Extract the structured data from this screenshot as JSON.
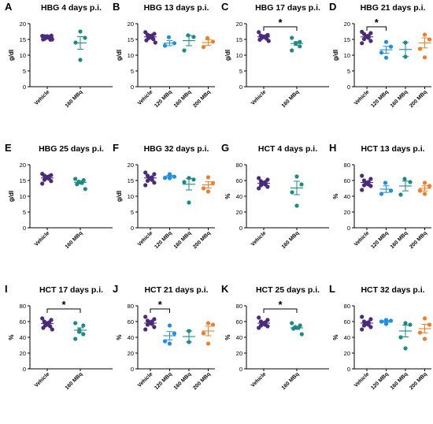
{
  "colors": {
    "Vehicle": "#4a2a7a",
    "120 MBq": "#1f8fe0",
    "160 MBq": "#1a8c84",
    "200 MBq": "#f07d2a"
  },
  "chart_data": [
    {
      "letter": "A",
      "type": "scatter",
      "title": "HBG 4 days p.i.",
      "ylabel": "g/dl",
      "ylim": [
        0,
        20
      ],
      "yticks": [
        0,
        5,
        10,
        15,
        20
      ],
      "categories": [
        "Vehicle",
        "160 MBq"
      ],
      "series": [
        {
          "category": "Vehicle",
          "values": [
            16.1,
            16.2,
            16.0,
            15.8,
            15.9,
            15.7,
            16.0,
            15.6,
            15.5,
            15.2,
            14.9,
            15.0,
            15.0
          ],
          "mean": 15.7,
          "sem": 0.3
        },
        {
          "category": "160 MBq",
          "values": [
            17.5,
            15.5,
            14.0,
            8.5
          ],
          "mean": 13.9,
          "sem": 2.0
        }
      ],
      "sig": []
    },
    {
      "letter": "B",
      "type": "scatter",
      "title": "HBG 13 days p.i.",
      "ylabel": "g/dl",
      "ylim": [
        0,
        20
      ],
      "yticks": [
        0,
        5,
        10,
        15,
        20
      ],
      "categories": [
        "Vehicle",
        "120 MBq",
        "160 MBq",
        "200 MBq"
      ],
      "series": [
        {
          "category": "Vehicle",
          "values": [
            17.3,
            16.8,
            16.5,
            16.3,
            16.2,
            15.9,
            15.6,
            15.4,
            15.1,
            14.7,
            14.0
          ],
          "mean": 15.8,
          "sem": 0.3
        },
        {
          "category": "120 MBq",
          "values": [
            15.7,
            13.8,
            13.0
          ],
          "mean": 13.8,
          "sem": 0.8
        },
        {
          "category": "160 MBq",
          "values": [
            16.3,
            15.8,
            11.5
          ],
          "mean": 14.6,
          "sem": 1.6
        },
        {
          "category": "200 MBq",
          "values": [
            15.4,
            14.3,
            12.6
          ],
          "mean": 14.0,
          "sem": 0.9
        }
      ],
      "sig": []
    },
    {
      "letter": "C",
      "type": "scatter",
      "title": "HBG 17 days p.i.",
      "ylabel": "g/dl",
      "ylim": [
        0,
        20
      ],
      "yticks": [
        0,
        5,
        10,
        15,
        20
      ],
      "categories": [
        "Vehicle",
        "160 MBq"
      ],
      "series": [
        {
          "category": "Vehicle",
          "values": [
            17.3,
            16.4,
            16.2,
            16.0,
            15.9,
            15.8,
            15.7,
            15.5,
            15.2,
            14.9,
            14.5
          ],
          "mean": 15.8,
          "sem": 0.3
        },
        {
          "category": "160 MBq",
          "values": [
            15.5,
            14.2,
            13.8,
            13.7,
            12.8,
            11.5
          ],
          "mean": 13.7,
          "sem": 0.6
        }
      ],
      "sig": [
        {
          "a": 0,
          "b": 1,
          "label": "*"
        }
      ]
    },
    {
      "letter": "D",
      "type": "scatter",
      "title": "HBG 21 days p.i.",
      "ylabel": "g/dl",
      "ylim": [
        0,
        20
      ],
      "yticks": [
        0,
        5,
        10,
        15,
        20
      ],
      "categories": [
        "Vehicle",
        "120 MBq",
        "160 MBq",
        "200 MBq"
      ],
      "series": [
        {
          "category": "Vehicle",
          "values": [
            17.4,
            17.0,
            16.7,
            16.2,
            16.0,
            15.8,
            15.5,
            15.1,
            14.5,
            13.8
          ],
          "mean": 15.8,
          "sem": 0.3
        },
        {
          "category": "120 MBq",
          "values": [
            14.2,
            12.7,
            10.8,
            9.2
          ],
          "mean": 11.7,
          "sem": 1.1
        },
        {
          "category": "160 MBq",
          "values": [
            14.0,
            9.5
          ],
          "mean": 11.8,
          "sem": 2.2
        },
        {
          "category": "200 MBq",
          "values": [
            16.5,
            15.0,
            12.0,
            9.3
          ],
          "mean": 13.9,
          "sem": 1.6
        }
      ],
      "sig": [
        {
          "a": 0,
          "b": 1,
          "label": "*"
        }
      ]
    },
    {
      "letter": "E",
      "type": "scatter",
      "title": "HBG 25 days p.i.",
      "ylabel": "g/dl",
      "ylim": [
        0,
        20
      ],
      "yticks": [
        0,
        5,
        10,
        15,
        20
      ],
      "categories": [
        "Vehicle",
        "160 MBq"
      ],
      "series": [
        {
          "category": "Vehicle",
          "values": [
            17.1,
            16.7,
            16.5,
            16.3,
            16.1,
            15.8,
            15.6,
            15.2,
            14.8,
            14.0
          ],
          "mean": 15.8,
          "sem": 0.3
        },
        {
          "category": "160 MBq",
          "values": [
            15.5,
            15.1,
            14.6,
            14.4,
            14.2,
            13.8,
            12.3
          ],
          "mean": 14.4,
          "sem": 0.4
        }
      ],
      "sig": []
    },
    {
      "letter": "F",
      "type": "scatter",
      "title": "HBG 32 days p.i.",
      "ylabel": "g/dl",
      "ylim": [
        0,
        20
      ],
      "yticks": [
        0,
        5,
        10,
        15,
        20
      ],
      "categories": [
        "Vehicle",
        "120 MBq",
        "160 MBq",
        "200 MBq"
      ],
      "series": [
        {
          "category": "Vehicle",
          "values": [
            17.5,
            17.0,
            16.5,
            16.0,
            15.8,
            15.5,
            15.2,
            14.9,
            14.3,
            13.5
          ],
          "mean": 15.8,
          "sem": 0.3
        },
        {
          "category": "120 MBq",
          "values": [
            17.0,
            16.2,
            15.8,
            15.7
          ],
          "mean": 16.3,
          "sem": 0.3
        },
        {
          "category": "160 MBq",
          "values": [
            15.8,
            15.3,
            14.5,
            8.0
          ],
          "mean": 13.8,
          "sem": 1.8
        },
        {
          "category": "200 MBq",
          "values": [
            16.0,
            14.2,
            12.5,
            11.5
          ],
          "mean": 13.6,
          "sem": 1.0
        }
      ],
      "sig": []
    },
    {
      "letter": "G",
      "type": "scatter",
      "title": "HCT 4 days p.i.",
      "ylabel": "%",
      "ylim": [
        0,
        80
      ],
      "yticks": [
        0,
        20,
        40,
        60,
        80
      ],
      "categories": [
        "Vehicle",
        "160 MBq"
      ],
      "series": [
        {
          "category": "Vehicle",
          "values": [
            63,
            61,
            59,
            58,
            57,
            56,
            55,
            54,
            52,
            50
          ],
          "mean": 56.5,
          "sem": 1.2
        },
        {
          "category": "160 MBq",
          "values": [
            65,
            55,
            45,
            28
          ],
          "mean": 50.5,
          "sem": 8.5
        }
      ],
      "sig": []
    },
    {
      "letter": "H",
      "type": "scatter",
      "title": "HCT 13 days p.i.",
      "ylabel": "%",
      "ylim": [
        0,
        80
      ],
      "yticks": [
        0,
        20,
        40,
        60,
        80
      ],
      "categories": [
        "Vehicle",
        "120 MBq",
        "160 MBq",
        "200 MBq"
      ],
      "series": [
        {
          "category": "Vehicle",
          "values": [
            66,
            62,
            60,
            58,
            57,
            56,
            55,
            54,
            53,
            48
          ],
          "mean": 57.5,
          "sem": 1.5
        },
        {
          "category": "120 MBq",
          "values": [
            57,
            47,
            43
          ],
          "mean": 49,
          "sem": 4.2
        },
        {
          "category": "160 MBq",
          "values": [
            62,
            58,
            42
          ],
          "mean": 53,
          "sem": 6.2
        },
        {
          "category": "200 MBq",
          "values": [
            57,
            53,
            47,
            43
          ],
          "mean": 50,
          "sem": 3.2
        }
      ],
      "sig": []
    },
    {
      "letter": "I",
      "type": "scatter",
      "title": "HCT 17 days p.i.",
      "ylabel": "%",
      "ylim": [
        0,
        80
      ],
      "yticks": [
        0,
        20,
        40,
        60,
        80
      ],
      "categories": [
        "Vehicle",
        "160 MBq"
      ],
      "series": [
        {
          "category": "Vehicle",
          "values": [
            64,
            62,
            60,
            59,
            58,
            57,
            56,
            55,
            54,
            52,
            50
          ],
          "mean": 57.5,
          "sem": 1.2
        },
        {
          "category": "160 MBq",
          "values": [
            58,
            55,
            49,
            47,
            44,
            38
          ],
          "mean": 49,
          "sem": 3.0
        }
      ],
      "sig": [
        {
          "a": 0,
          "b": 1,
          "label": "*"
        }
      ]
    },
    {
      "letter": "J",
      "type": "scatter",
      "title": "HCT 21 days p.i.",
      "ylabel": "%",
      "ylim": [
        0,
        80
      ],
      "yticks": [
        0,
        20,
        40,
        60,
        80
      ],
      "categories": [
        "Vehicle",
        "120 MBq",
        "160 MBq",
        "200 MBq"
      ],
      "series": [
        {
          "category": "Vehicle",
          "values": [
            66,
            63,
            61,
            60,
            59,
            58,
            57,
            56,
            53,
            50
          ],
          "mean": 58,
          "sem": 1.5
        },
        {
          "category": "120 MBq",
          "values": [
            55,
            45,
            35,
            32
          ],
          "mean": 42,
          "sem": 5.3
        },
        {
          "category": "160 MBq",
          "values": [
            48,
            34
          ],
          "mean": 41,
          "sem": 7.0
        },
        {
          "category": "200 MBq",
          "values": [
            58,
            56,
            45,
            32
          ],
          "mean": 48,
          "sem": 6.0
        }
      ],
      "sig": [
        {
          "a": 0,
          "b": 1,
          "label": "*"
        }
      ]
    },
    {
      "letter": "K",
      "type": "scatter",
      "title": "HCT 25 days p.i.",
      "ylabel": "%",
      "ylim": [
        0,
        80
      ],
      "yticks": [
        0,
        20,
        40,
        60,
        80
      ],
      "categories": [
        "Vehicle",
        "160 MBq"
      ],
      "series": [
        {
          "category": "Vehicle",
          "values": [
            65,
            62,
            60,
            59,
            58,
            57,
            56,
            55,
            54,
            52
          ],
          "mean": 58,
          "sem": 1.2
        },
        {
          "category": "160 MBq",
          "values": [
            58,
            55,
            53,
            52,
            52,
            51,
            44
          ],
          "mean": 52,
          "sem": 1.7
        }
      ],
      "sig": [
        {
          "a": 0,
          "b": 1,
          "label": "*"
        }
      ]
    },
    {
      "letter": "L",
      "type": "scatter",
      "title": "HCT 32 days p.i.",
      "ylabel": "%",
      "ylim": [
        0,
        80
      ],
      "yticks": [
        0,
        20,
        40,
        60,
        80
      ],
      "categories": [
        "Vehicle",
        "120 MBq",
        "160 MBq",
        "200 MBq"
      ],
      "series": [
        {
          "category": "Vehicle",
          "values": [
            66,
            63,
            60,
            59,
            58,
            57,
            56,
            55,
            53,
            50
          ],
          "mean": 58,
          "sem": 1.5
        },
        {
          "category": "120 MBq",
          "values": [
            62,
            61,
            60,
            57
          ],
          "mean": 60,
          "sem": 1.2
        },
        {
          "category": "160 MBq",
          "values": [
            58,
            56,
            40,
            26
          ],
          "mean": 48,
          "sem": 7.5
        },
        {
          "category": "200 MBq",
          "values": [
            64,
            56,
            46,
            38
          ],
          "mean": 51,
          "sem": 5.5
        }
      ],
      "sig": []
    }
  ]
}
